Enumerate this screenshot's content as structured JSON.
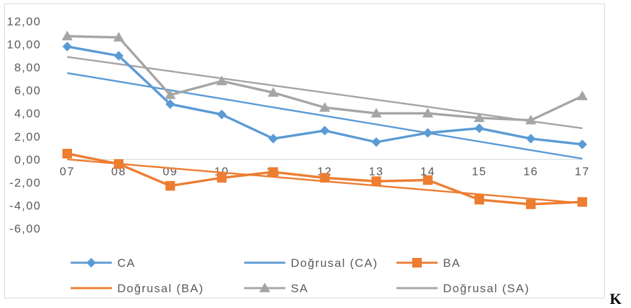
{
  "chart_data": {
    "type": "line",
    "title": "",
    "xlabel": "",
    "ylabel": "",
    "categories": [
      "07",
      "08",
      "09",
      "10",
      "11",
      "12",
      "13",
      "14",
      "15",
      "16",
      "17"
    ],
    "ylim": [
      -6,
      12
    ],
    "yticks": [
      12,
      10,
      8,
      6,
      4,
      2,
      0,
      -2,
      -4,
      -6
    ],
    "ytick_labels": [
      "12,00",
      "10,00",
      "8,00",
      "6,00",
      "4,00",
      "2,00",
      "0,00",
      "-2,00",
      "-4,00",
      "-6,00"
    ],
    "grid": false,
    "legend_position": "bottom",
    "series": [
      {
        "name": "CA",
        "marker": "diamond",
        "color": "#5b9bd5",
        "values": [
          9.8,
          9.0,
          4.8,
          3.9,
          1.8,
          2.5,
          1.5,
          2.3,
          2.7,
          1.8,
          1.3
        ]
      },
      {
        "name": "Doğrusal (CA)",
        "marker": "none",
        "color": "#5b9bd5",
        "trendline_of": "CA",
        "values": [
          7.5,
          6.76,
          6.01,
          5.27,
          4.52,
          3.78,
          3.04,
          2.29,
          1.55,
          0.8,
          0.06
        ]
      },
      {
        "name": "BA",
        "marker": "square",
        "color": "#ed7d31",
        "values": [
          0.5,
          -0.4,
          -2.3,
          -1.6,
          -1.1,
          -1.6,
          -1.9,
          -1.8,
          -3.5,
          -3.9,
          -3.7
        ]
      },
      {
        "name": "Doğrusal (BA)",
        "marker": "none",
        "color": "#ed7d31",
        "trendline_of": "BA",
        "values": [
          0.0,
          -0.38,
          -0.76,
          -1.14,
          -1.52,
          -1.9,
          -2.28,
          -2.66,
          -3.04,
          -3.42,
          -3.8
        ]
      },
      {
        "name": "SA",
        "marker": "triangle",
        "color": "#a5a5a5",
        "values": [
          10.7,
          10.6,
          5.6,
          6.8,
          5.8,
          4.5,
          4.0,
          4.0,
          3.6,
          3.4,
          5.5
        ]
      },
      {
        "name": "Doğrusal (SA)",
        "marker": "none",
        "color": "#a5a5a5",
        "trendline_of": "SA",
        "values": [
          8.9,
          8.28,
          7.66,
          7.04,
          6.42,
          5.8,
          5.18,
          4.56,
          3.94,
          3.32,
          2.7
        ]
      }
    ]
  },
  "legend": {
    "row1": [
      "CA",
      "Doğrusal (CA)",
      "BA"
    ],
    "row2": [
      "Doğrusal (BA)",
      "SA",
      "Doğrusal (SA)"
    ]
  },
  "corner_letter": "K"
}
